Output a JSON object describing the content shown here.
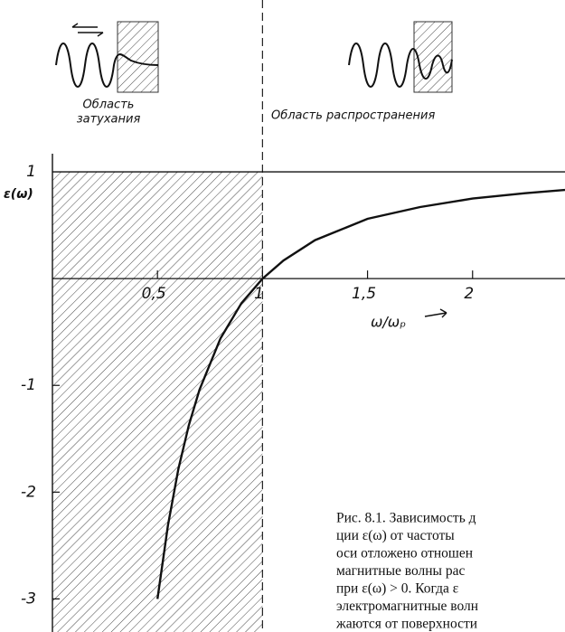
{
  "chart_data": {
    "type": "line",
    "y_label": "ε(ω)",
    "x_label": "ω/ωₚ",
    "region_left_lines": [
      "Область",
      "затухания"
    ],
    "region_right": "Область распространения",
    "x": [
      0.5,
      0.55,
      0.6,
      0.65,
      0.7,
      0.8,
      0.9,
      1,
      1.1,
      1.25,
      1.5,
      1.75,
      2,
      2.25,
      2.44
    ],
    "values": [
      -3,
      -2.31,
      -1.78,
      -1.37,
      -1.04,
      -0.56,
      -0.23,
      0,
      0.17,
      0.36,
      0.56,
      0.67,
      0.75,
      0.8,
      0.83
    ],
    "color": "#111111",
    "xlim": [
      0,
      2.44
    ],
    "ylim": [
      -3.31,
      1.17
    ],
    "xticks": [
      {
        "value": 0.5,
        "label": "0,5"
      },
      {
        "value": 1,
        "label": "1"
      },
      {
        "value": 1.5,
        "label": "1,5"
      },
      {
        "value": 2,
        "label": "2"
      }
    ],
    "yticks": [
      1,
      -1,
      -2,
      -3
    ],
    "caption_lines": [
      "Рис. 8.1. Зависимость д",
      "ции ε(ω) от частоты",
      "оси отложено отношен",
      "магнитные волны рас",
      "при ε(ω) > 0. Когда ε",
      "электромагнитные волн",
      "жаются от поверхности"
    ]
  }
}
